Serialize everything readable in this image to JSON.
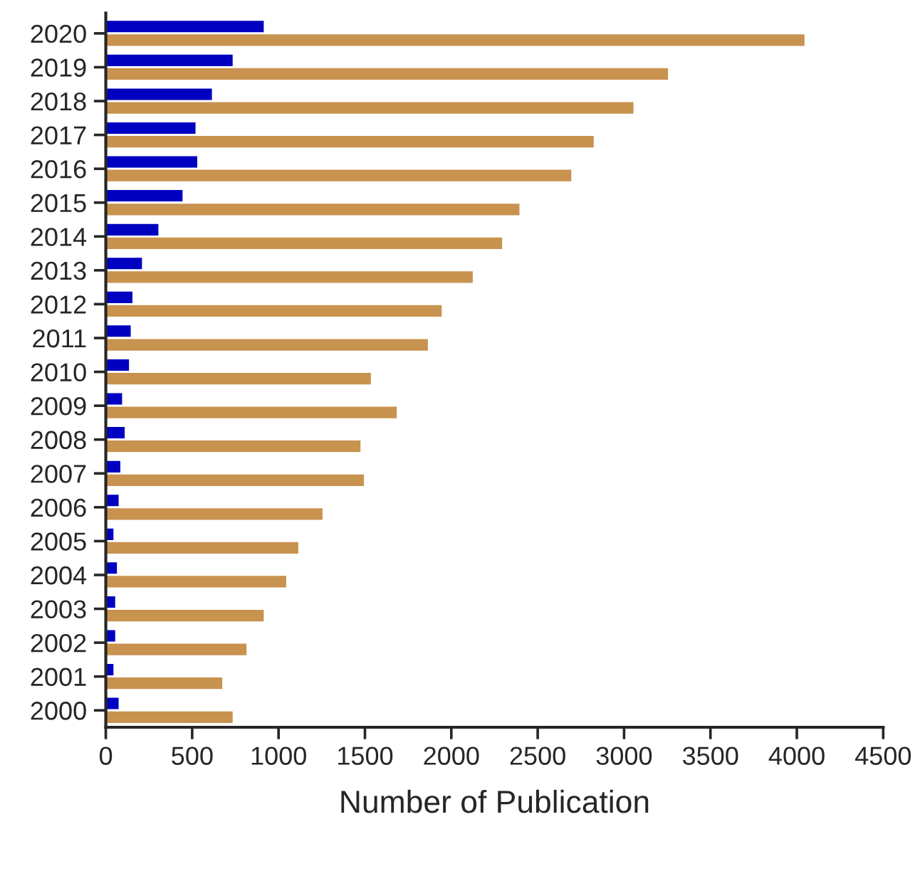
{
  "chart_data": {
    "type": "bar",
    "orientation": "horizontal",
    "xlabel": "Number of Publication",
    "categories": [
      "2020",
      "2019",
      "2018",
      "2017",
      "2016",
      "2015",
      "2014",
      "2013",
      "2012",
      "2011",
      "2010",
      "2009",
      "2008",
      "2007",
      "2006",
      "2005",
      "2004",
      "2003",
      "2002",
      "2001",
      "2000"
    ],
    "series": [
      {
        "color": "#0000c0",
        "values": [
          920,
          740,
          620,
          525,
          535,
          450,
          310,
          215,
          160,
          150,
          140,
          100,
          115,
          90,
          80,
          50,
          70,
          60,
          60,
          50,
          80
        ]
      },
      {
        "color": "#c8924f",
        "values": [
          4050,
          3260,
          3060,
          2830,
          2700,
          2400,
          2300,
          2130,
          1950,
          1870,
          1540,
          1690,
          1480,
          1500,
          1260,
          1120,
          1050,
          920,
          820,
          680,
          740
        ]
      }
    ],
    "xlim": [
      0,
      4500
    ],
    "xticks": [
      0,
      500,
      1000,
      1500,
      2000,
      2500,
      3000,
      3500,
      4000,
      4500
    ],
    "grid": false
  }
}
